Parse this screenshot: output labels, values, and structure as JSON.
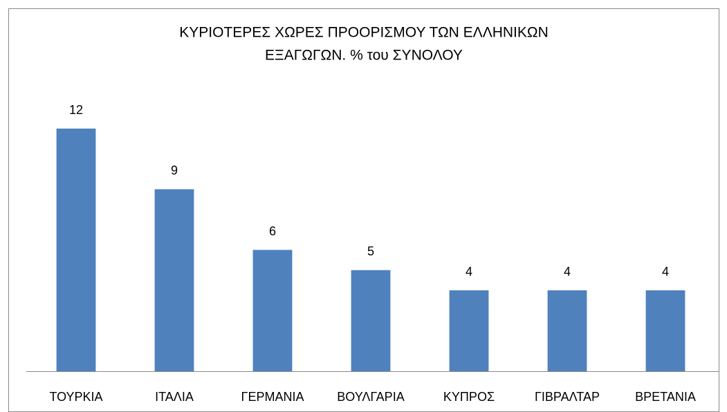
{
  "chart_data": {
    "type": "bar",
    "title": [
      "ΚΥΡΙΟΤΕΡΕΣ ΧΩΡΕΣ ΠΡΟΟΡΙΣΜΟΥ ΤΩΝ ΕΛΛΗΝΙΚΩΝ",
      "ΕΞΑΓΩΓΩΝ. % του ΣΥΝΟΛΟΥ"
    ],
    "categories": [
      "ΤΟΥΡΚΙΑ",
      "ΙΤΑΛΙΑ",
      "ΓΕΡΜΑΝΙΑ",
      "ΒΟΥΛΓΑΡΙΑ",
      "ΚΥΠΡΟΣ",
      "ΓΙΒΡΑΛΤΑΡ",
      "ΒΡΕΤΑΝΙΑ"
    ],
    "values": [
      12,
      9,
      6,
      5,
      4,
      4,
      4
    ],
    "color": "#4f81bd",
    "ylim": [
      0,
      14
    ]
  }
}
